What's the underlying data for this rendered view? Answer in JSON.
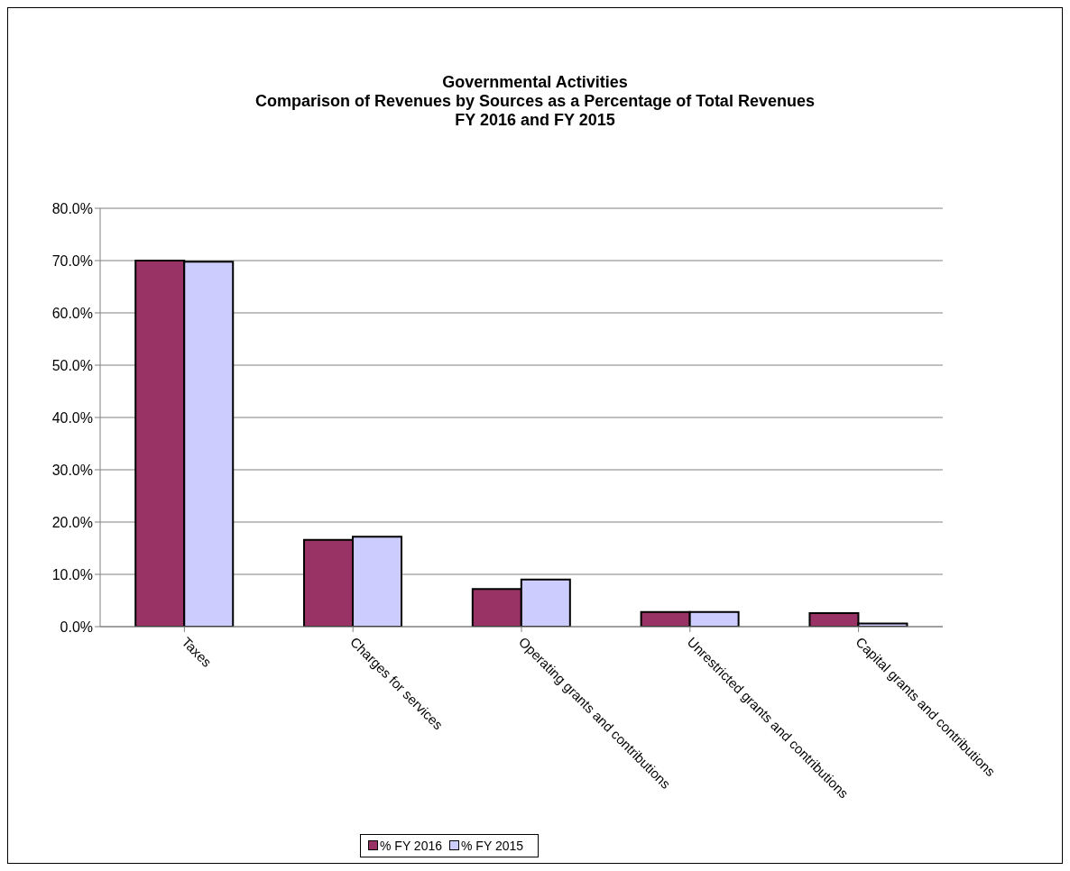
{
  "chart_data": {
    "type": "bar",
    "title": "Governmental Activities\nComparison of Revenues by Sources as a Percentage of Total Revenues\nFY 2016 and FY 2015",
    "categories": [
      "Taxes",
      "Charges for services",
      "Operating grants and contributions",
      "Unrestricted grants and contributions",
      "Capital grants and contributions"
    ],
    "series": [
      {
        "name": "% FY 2016",
        "color": "#993366",
        "values": [
          70.0,
          16.6,
          7.2,
          2.8,
          2.6
        ]
      },
      {
        "name": "% FY 2015",
        "color": "#ccccff",
        "values": [
          69.8,
          17.2,
          9.0,
          2.8,
          0.6
        ]
      }
    ],
    "ylim": [
      0,
      80
    ],
    "yticks": [
      {
        "value": 0,
        "label": "0.0%"
      },
      {
        "value": 10,
        "label": "10.0%"
      },
      {
        "value": 20,
        "label": "20.0%"
      },
      {
        "value": 30,
        "label": "30.0%"
      },
      {
        "value": 40,
        "label": "40.0%"
      },
      {
        "value": 50,
        "label": "50.0%"
      },
      {
        "value": 60,
        "label": "60.0%"
      },
      {
        "value": 70,
        "label": "70.0%"
      },
      {
        "value": 80,
        "label": "80.0%"
      }
    ],
    "grid": "y",
    "legend": "bottom"
  }
}
